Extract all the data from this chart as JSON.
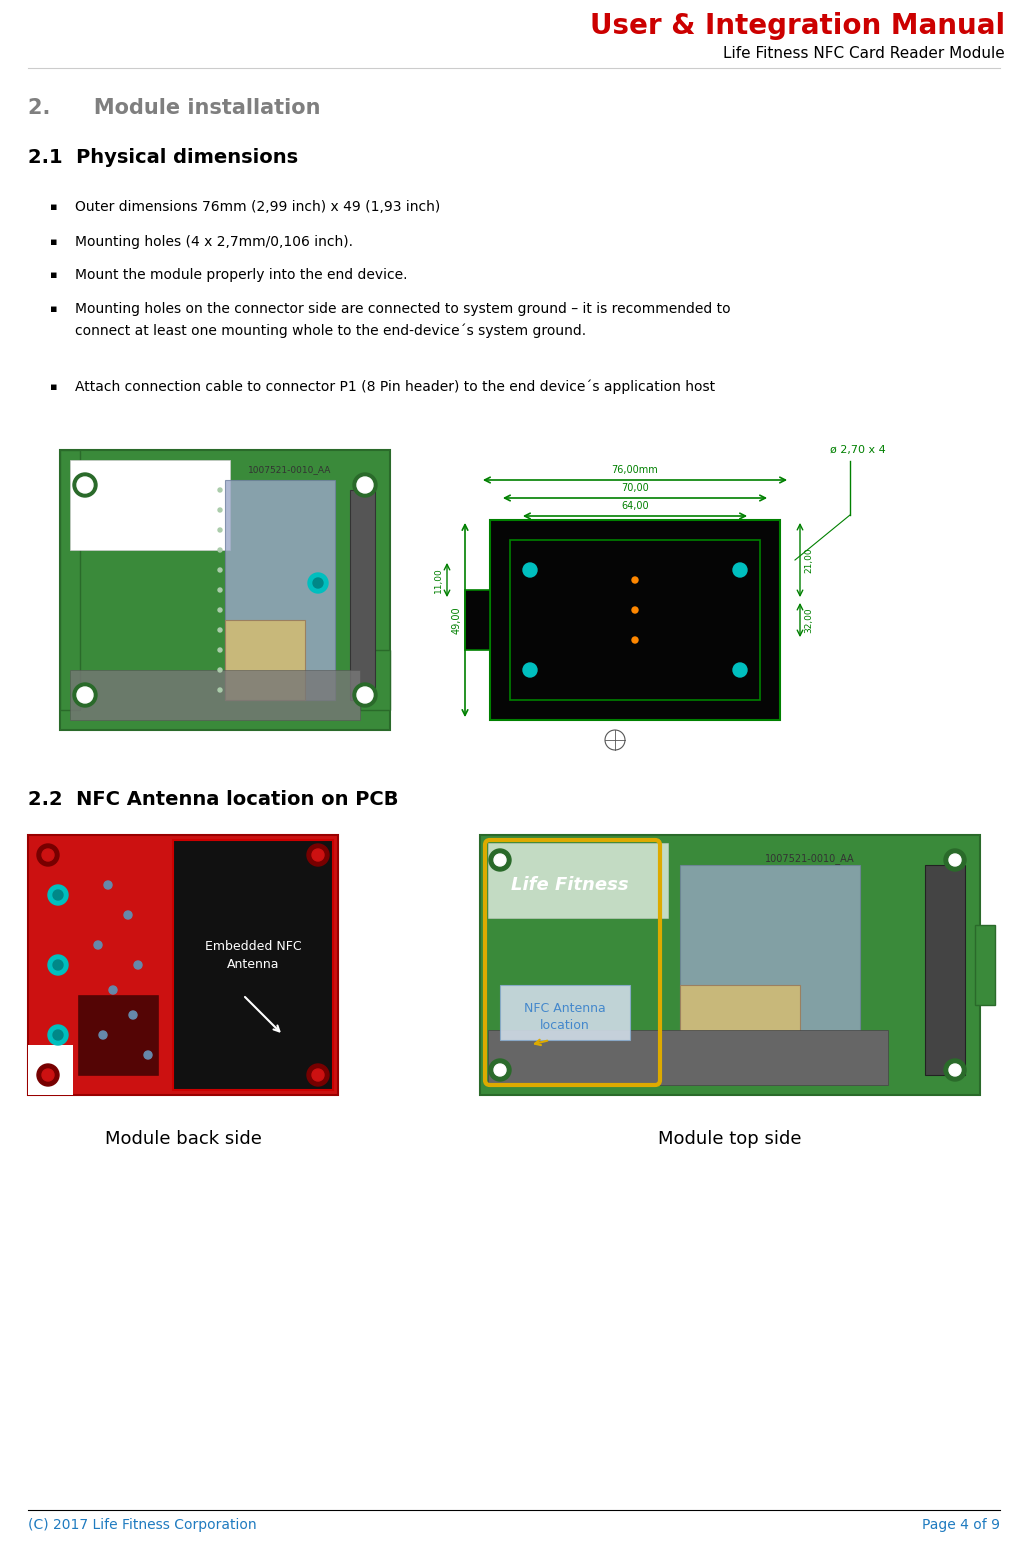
{
  "title": "User & Integration Manual",
  "subtitle": "Life Fitness NFC Card Reader Module",
  "title_color": "#CC0000",
  "subtitle_color": "#000000",
  "section2_title": "2.      Module installation",
  "section21_title": "2.1  Physical dimensions",
  "section22_title": "2.2  NFC Antenna location on PCB",
  "section_title_color": "#7F7F7F",
  "subsection_title_color": "#000000",
  "bullet_points": [
    "Outer dimensions 76mm (2,99 inch) x 49 (1,93 inch)",
    "Mounting holes (4 x 2,7mm/0,106 inch).",
    "Mount the module properly into the end device.",
    "Mounting holes on the connector side are connected to system ground – it is recommended to\nconnect at least one mounting whole to the end-device´s system ground.",
    "Attach connection cable to connector P1 (8 Pin header) to the end device´s application host"
  ],
  "footer_left": "(C) 2017 Life Fitness Corporation",
  "footer_right": "Page 4 of 9",
  "footer_color": "#1F7BC0",
  "module_back_label": "Module back side",
  "module_top_label": "Module top side",
  "background_color": "#FFFFFF",
  "body_text_color": "#000000",
  "annotation_color": "#008000",
  "dim_color": "#008000",
  "header_line_color": "#CCCCCC",
  "footer_line_color": "#000000",
  "pcb_green": "#3A8A3A",
  "pcb_green_dark": "#2A6A2A",
  "pcb_black": "#050505",
  "pcb_red": "#CC1111",
  "cyan_color": "#00BFBF",
  "tan_color": "#C8B87A",
  "gray_color": "#888888",
  "nfc_label_color": "#4488CC",
  "nfc_box_border": "#DDAA00",
  "white_label_bg": "#FFFFFF"
}
